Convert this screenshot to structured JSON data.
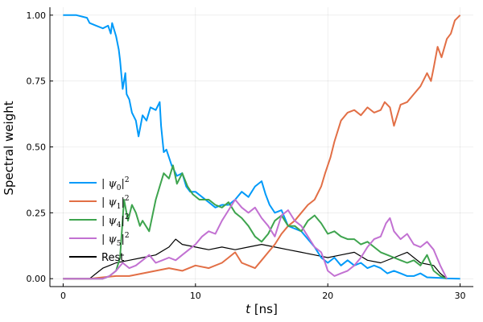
{
  "chart_data": {
    "type": "line",
    "title": "",
    "xlabel": "t [ns]",
    "xlabel_var": "t",
    "xlabel_unit": "[ns]",
    "ylabel": "Spectral weight",
    "xlim": [
      -1,
      31
    ],
    "ylim": [
      -0.03,
      1.03
    ],
    "grid": true,
    "legend_position": "bottom-left",
    "x_ticks": [
      0,
      10,
      20,
      30
    ],
    "x_tick_labels": [
      "0",
      "10",
      "20",
      "30"
    ],
    "y_ticks": [
      0,
      0.25,
      0.5,
      0.75,
      1.0
    ],
    "y_tick_labels": [
      "0.00",
      "0.25",
      "0.50",
      "0.75",
      "1.00"
    ],
    "series": [
      {
        "name": "|ψ0|²",
        "sym": "ψ",
        "sub": "0",
        "color": "#009af9",
        "x": [
          0,
          1,
          1.8,
          2.0,
          2.5,
          3.0,
          3.4,
          3.6,
          3.7,
          4.0,
          4.2,
          4.3,
          4.5,
          4.7,
          4.8,
          5.0,
          5.2,
          5.5,
          5.7,
          6.0,
          6.3,
          6.6,
          7.0,
          7.3,
          7.4,
          7.6,
          7.8,
          8.2,
          8.6,
          9.0,
          9.3,
          9.6,
          10.0,
          10.5,
          11.0,
          11.5,
          12.0,
          12.5,
          13.0,
          13.5,
          14.0,
          14.5,
          15.0,
          15.3,
          15.6,
          16.0,
          16.5,
          17.0,
          17.5,
          18.0,
          18.5,
          19.0,
          19.5,
          20.0,
          20.5,
          21.0,
          21.5,
          22.0,
          22.5,
          23.0,
          23.5,
          24.0,
          24.5,
          25.0,
          25.5,
          26.0,
          26.5,
          27.0,
          27.5,
          28.0,
          28.5,
          29.0,
          30.0
        ],
        "y": [
          1.0,
          1.0,
          0.99,
          0.97,
          0.96,
          0.95,
          0.96,
          0.93,
          0.97,
          0.92,
          0.87,
          0.83,
          0.72,
          0.78,
          0.7,
          0.68,
          0.63,
          0.6,
          0.54,
          0.62,
          0.6,
          0.65,
          0.64,
          0.67,
          0.58,
          0.48,
          0.49,
          0.43,
          0.39,
          0.4,
          0.35,
          0.33,
          0.33,
          0.31,
          0.29,
          0.27,
          0.28,
          0.28,
          0.3,
          0.33,
          0.31,
          0.35,
          0.37,
          0.32,
          0.28,
          0.25,
          0.26,
          0.2,
          0.19,
          0.18,
          0.15,
          0.12,
          0.08,
          0.06,
          0.08,
          0.05,
          0.07,
          0.05,
          0.06,
          0.04,
          0.05,
          0.04,
          0.02,
          0.03,
          0.02,
          0.01,
          0.01,
          0.02,
          0.005,
          0.004,
          0.003,
          0.001,
          0.0
        ]
      },
      {
        "name": "|ψ1|²",
        "sym": "ψ",
        "sub": "1",
        "color": "#e26f46",
        "x": [
          0,
          2,
          3,
          4,
          5,
          6,
          7,
          8,
          9,
          10,
          11,
          12,
          12.5,
          13,
          13.5,
          14,
          14.5,
          15,
          15.5,
          16,
          16.5,
          17,
          17.5,
          18,
          18.5,
          19,
          19.3,
          19.5,
          19.8,
          20.2,
          20.5,
          21.0,
          21.5,
          22.0,
          22.5,
          23.0,
          23.5,
          24.0,
          24.3,
          24.7,
          25.0,
          25.5,
          26.0,
          26.5,
          27.0,
          27.5,
          27.8,
          28.0,
          28.3,
          28.6,
          29.0,
          29.3,
          29.6,
          30.0
        ],
        "y": [
          0.0,
          0.0,
          0.005,
          0.01,
          0.01,
          0.02,
          0.03,
          0.04,
          0.03,
          0.05,
          0.04,
          0.06,
          0.08,
          0.1,
          0.06,
          0.05,
          0.04,
          0.07,
          0.1,
          0.13,
          0.17,
          0.2,
          0.22,
          0.25,
          0.28,
          0.3,
          0.33,
          0.35,
          0.4,
          0.46,
          0.52,
          0.6,
          0.63,
          0.64,
          0.62,
          0.65,
          0.63,
          0.64,
          0.67,
          0.65,
          0.58,
          0.66,
          0.67,
          0.7,
          0.73,
          0.78,
          0.75,
          0.8,
          0.88,
          0.84,
          0.91,
          0.93,
          0.98,
          1.0
        ]
      },
      {
        "name": "|ψ4|²",
        "sym": "ψ",
        "sub": "4",
        "color": "#3ea44e",
        "x": [
          0,
          3,
          3.5,
          4.0,
          4.3,
          4.6,
          4.9,
          5.2,
          5.5,
          5.8,
          6.0,
          6.5,
          7.0,
          7.3,
          7.6,
          8.0,
          8.3,
          8.6,
          9.0,
          9.4,
          9.8,
          10.3,
          11.0,
          11.5,
          12.0,
          12.5,
          13.0,
          13.5,
          14.0,
          14.5,
          15.0,
          15.5,
          16.0,
          16.5,
          17.0,
          17.5,
          18.0,
          18.5,
          19.0,
          19.5,
          20.0,
          20.5,
          21.0,
          21.5,
          22.0,
          22.5,
          23.0,
          23.5,
          24.0,
          24.5,
          25.0,
          25.5,
          26.0,
          26.5,
          27.0,
          27.5,
          28.0,
          28.5,
          29.0
        ],
        "y": [
          0.0,
          0.0,
          0.01,
          0.03,
          0.08,
          0.3,
          0.22,
          0.28,
          0.25,
          0.2,
          0.22,
          0.18,
          0.3,
          0.35,
          0.4,
          0.38,
          0.43,
          0.36,
          0.4,
          0.35,
          0.32,
          0.3,
          0.3,
          0.28,
          0.27,
          0.29,
          0.25,
          0.23,
          0.2,
          0.16,
          0.14,
          0.17,
          0.22,
          0.24,
          0.2,
          0.2,
          0.18,
          0.22,
          0.24,
          0.21,
          0.17,
          0.18,
          0.16,
          0.15,
          0.15,
          0.13,
          0.14,
          0.12,
          0.1,
          0.09,
          0.08,
          0.07,
          0.06,
          0.07,
          0.05,
          0.09,
          0.03,
          0.01,
          0.0
        ]
      },
      {
        "name": "|ψ5|²",
        "sym": "ψ",
        "sub": "5",
        "color": "#c271d2",
        "x": [
          0,
          3,
          3.5,
          4.0,
          4.5,
          5.0,
          5.5,
          6.0,
          6.5,
          7.0,
          7.5,
          8.0,
          8.5,
          9.0,
          9.5,
          10.0,
          10.5,
          11.0,
          11.5,
          12.0,
          12.5,
          13.0,
          13.5,
          14.0,
          14.5,
          15.0,
          15.5,
          16.0,
          16.5,
          17.0,
          17.5,
          18.0,
          18.5,
          19.0,
          19.5,
          19.8,
          20.0,
          20.5,
          21.0,
          21.5,
          22.0,
          22.5,
          23.0,
          23.5,
          24.0,
          24.4,
          24.7,
          25.0,
          25.5,
          26.0,
          26.5,
          27.0,
          27.5,
          28.0,
          28.5,
          29.0
        ],
        "y": [
          0.0,
          0.0,
          0.01,
          0.03,
          0.06,
          0.04,
          0.05,
          0.07,
          0.09,
          0.06,
          0.07,
          0.08,
          0.07,
          0.09,
          0.11,
          0.13,
          0.16,
          0.18,
          0.17,
          0.22,
          0.26,
          0.3,
          0.27,
          0.25,
          0.27,
          0.23,
          0.2,
          0.16,
          0.24,
          0.26,
          0.22,
          0.2,
          0.16,
          0.12,
          0.1,
          0.06,
          0.03,
          0.01,
          0.02,
          0.03,
          0.05,
          0.08,
          0.12,
          0.15,
          0.16,
          0.21,
          0.23,
          0.18,
          0.15,
          0.17,
          0.13,
          0.12,
          0.14,
          0.11,
          0.05,
          0.0
        ]
      },
      {
        "name": "Rest",
        "color": "#000000",
        "x": [
          0,
          2,
          2.5,
          3.0,
          3.5,
          4.0,
          5.0,
          6.0,
          7.0,
          8.0,
          8.5,
          9.0,
          10.0,
          11.0,
          12.0,
          13.0,
          14.0,
          15.0,
          16.0,
          17.0,
          18.0,
          19.0,
          20.0,
          21.0,
          22.0,
          23.0,
          24.0,
          25.0,
          26.0,
          27.0,
          28.0,
          28.5,
          29.0
        ],
        "y": [
          0.0,
          0.0,
          0.02,
          0.04,
          0.05,
          0.06,
          0.07,
          0.08,
          0.09,
          0.12,
          0.15,
          0.13,
          0.12,
          0.11,
          0.12,
          0.11,
          0.12,
          0.13,
          0.12,
          0.11,
          0.1,
          0.09,
          0.08,
          0.09,
          0.1,
          0.07,
          0.06,
          0.08,
          0.1,
          0.06,
          0.05,
          0.02,
          0.0
        ]
      }
    ]
  }
}
